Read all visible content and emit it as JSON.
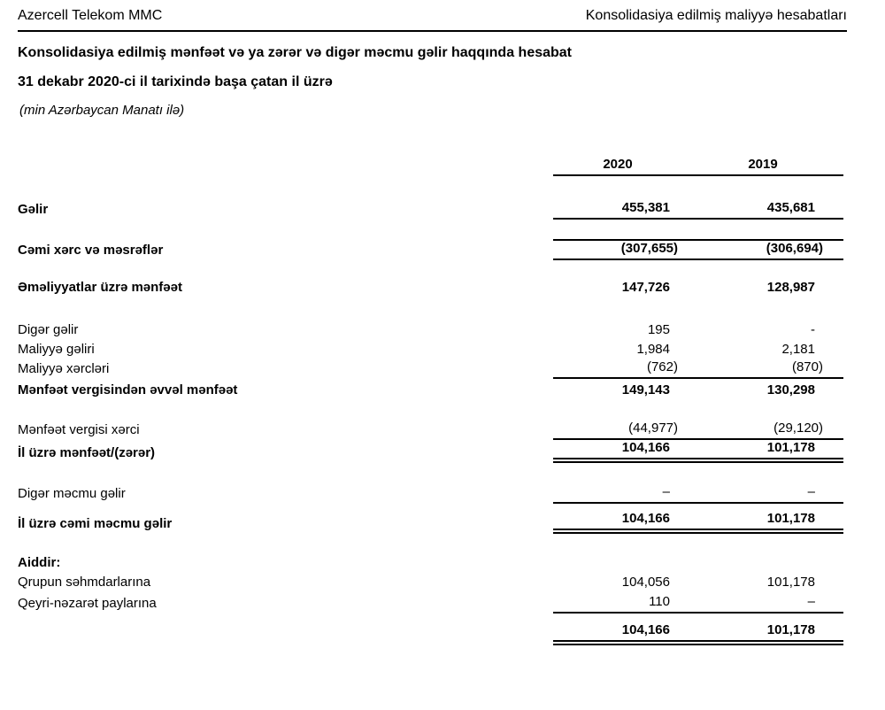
{
  "page": {
    "header": {
      "left": "Azercell Telekom MMC",
      "right": "Konsolidasiya edilmiş maliyyə hesabatları"
    },
    "title": "Konsolidasiya edilmiş mənfəət və ya zərər və digər məcmu gəlir haqqında hesabat",
    "period": "31 dekabr 2020-ci il tarixində başa çatan il üzrə",
    "currency_note": "(min Azərbaycan Manatı ilə)"
  },
  "statement": {
    "columns": [
      "2020",
      "2019"
    ],
    "rows": [
      {
        "label": "Gəlir",
        "y2020": "455,381",
        "y2019": "435,681"
      },
      {
        "label": "Cəmi xərc və məsrəflər",
        "y2020": "(307,655)",
        "y2019": "(306,694)"
      },
      {
        "label": "Əməliyyatlar üzrə mənfəət",
        "y2020": "147,726",
        "y2019": "128,987"
      },
      {
        "label": "Digər gəlir",
        "y2020": "195",
        "y2019": "-"
      },
      {
        "label": "Maliyyə gəliri",
        "y2020": "1,984",
        "y2019": "2,181"
      },
      {
        "label": "Maliyyə xərcləri",
        "y2020": "(762)",
        "y2019": "(870)"
      },
      {
        "label": "Mənfəət vergisindən əvvəl mənfəət",
        "y2020": "149,143",
        "y2019": "130,298"
      },
      {
        "label": "Mənfəət vergisi xərci",
        "y2020": "(44,977)",
        "y2019": "(29,120)"
      },
      {
        "label": "İl üzrə mənfəət/(zərər)",
        "y2020": "104,166",
        "y2019": "101,178"
      },
      {
        "label": "Digər məcmu gəlir",
        "y2020": "–",
        "y2019": "–"
      },
      {
        "label": "İl üzrə cəmi məcmu gəlir",
        "y2020": "104,166",
        "y2019": "101,178"
      },
      {
        "label": "Aiddir:",
        "y2020": "",
        "y2019": ""
      },
      {
        "label": "Qrupun səhmdarlarına",
        "y2020": "104,056",
        "y2019": "101,178"
      },
      {
        "label": "Qeyri-nəzarət paylarına",
        "y2020": "110",
        "y2019": "–"
      },
      {
        "label": "",
        "y2020": "104,166",
        "y2019": "101,178"
      }
    ]
  }
}
